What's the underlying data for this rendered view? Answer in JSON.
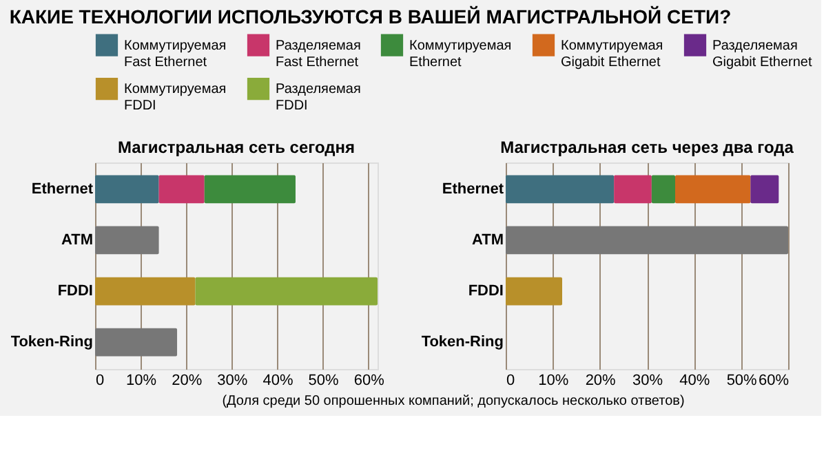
{
  "chart_data": [
    {
      "type": "other",
      "title": "КАКИЕ ТЕХНОЛОГИИ ИСПОЛЬЗУЮТСЯ В ВАШЕЙ МАГИСТРАЛЬНОЙ СЕТИ?",
      "annotations": [
        "(Доля среди 50 опрошенных компаний; допускалось несколько ответов)"
      ]
    },
    {
      "type": "bar",
      "orientation": "horizontal",
      "stacked": true,
      "title": "Магистральная сеть сегодня",
      "categories": [
        "Ethernet",
        "ATM",
        "FDDI",
        "Token-Ring"
      ],
      "xlim": [
        0,
        62
      ],
      "xticks": [
        0,
        {
          "value": 10,
          "label": "10%"
        },
        {
          "value": 20,
          "label": "20%"
        },
        {
          "value": 30,
          "label": "30%"
        },
        {
          "value": 40,
          "label": "40%"
        },
        {
          "value": 50,
          "label": "50%"
        },
        {
          "value": 60,
          "label": "60%"
        }
      ],
      "grid": "x",
      "legend": "top",
      "series": [
        {
          "name": "Коммутируемая Fast Ethernet",
          "color": "#3f6f7f",
          "values": [
            14,
            null,
            null,
            null
          ]
        },
        {
          "name": "Разделяемая Fast Ethernet",
          "color": "#c8366a",
          "values": [
            10,
            null,
            null,
            null
          ]
        },
        {
          "name": "Коммутируемая Ethernet",
          "color": "#3d8b3d",
          "values": [
            20,
            null,
            null,
            null
          ]
        },
        {
          "name": "Коммутируемая Gigabit Ethernet",
          "color": "#d2691e",
          "values": [
            null,
            null,
            null,
            null
          ]
        },
        {
          "name": "Разделяемая Gigabit Ethernet",
          "color": "#6a2a8a",
          "values": [
            null,
            null,
            null,
            null
          ]
        },
        {
          "name": "Коммутируемая FDDI",
          "color": "#b8902a",
          "values": [
            null,
            null,
            22,
            null
          ]
        },
        {
          "name": "Разделяемая FDDI",
          "color": "#8aab3a",
          "values": [
            null,
            null,
            40,
            null
          ]
        },
        {
          "color": "#777777",
          "values": [
            null,
            14,
            null,
            18
          ]
        }
      ]
    },
    {
      "type": "bar",
      "orientation": "horizontal",
      "stacked": true,
      "title": "Магистральная сеть через два года",
      "categories": [
        "Ethernet",
        "ATM",
        "FDDI",
        "Token-Ring"
      ],
      "xlim": [
        0,
        60
      ],
      "xticks": [
        0,
        {
          "value": 10,
          "label": "10%"
        },
        {
          "value": 20,
          "label": "20%"
        },
        {
          "value": 30,
          "label": "30%"
        },
        {
          "value": 40,
          "label": "40%"
        },
        {
          "value": 50,
          "label": "50%"
        },
        {
          "value": 60,
          "label": "60%"
        }
      ],
      "grid": "x",
      "series": [
        {
          "color": "#3f6f7f",
          "values": [
            23,
            null,
            null,
            null
          ]
        },
        {
          "color": "#c8366a",
          "values": [
            8,
            null,
            null,
            null
          ]
        },
        {
          "color": "#3d8b3d",
          "values": [
            5,
            null,
            null,
            null
          ]
        },
        {
          "color": "#d2691e",
          "values": [
            16,
            null,
            null,
            null
          ]
        },
        {
          "color": "#6a2a8a",
          "values": [
            6,
            null,
            null,
            null
          ]
        },
        {
          "color": "#b8902a",
          "values": [
            null,
            null,
            12,
            null
          ]
        },
        {
          "color": "#8aab3a",
          "values": [
            null,
            null,
            null,
            null
          ]
        },
        {
          "color": "#777777",
          "values": [
            null,
            60,
            null,
            null
          ]
        }
      ]
    }
  ]
}
